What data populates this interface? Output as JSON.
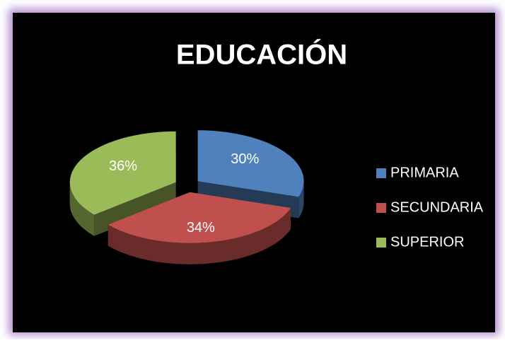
{
  "chart_data": {
    "type": "pie",
    "title": "EDUCACIÓN",
    "categories": [
      "PRIMARIA",
      "SECUNDARIA",
      "SUPERIOR"
    ],
    "values": [
      30,
      34,
      36
    ],
    "value_labels": [
      "30%",
      "34%",
      "36%"
    ],
    "colors": [
      "#4f81bd",
      "#c0504d",
      "#9bbb59"
    ],
    "legend": "right"
  }
}
